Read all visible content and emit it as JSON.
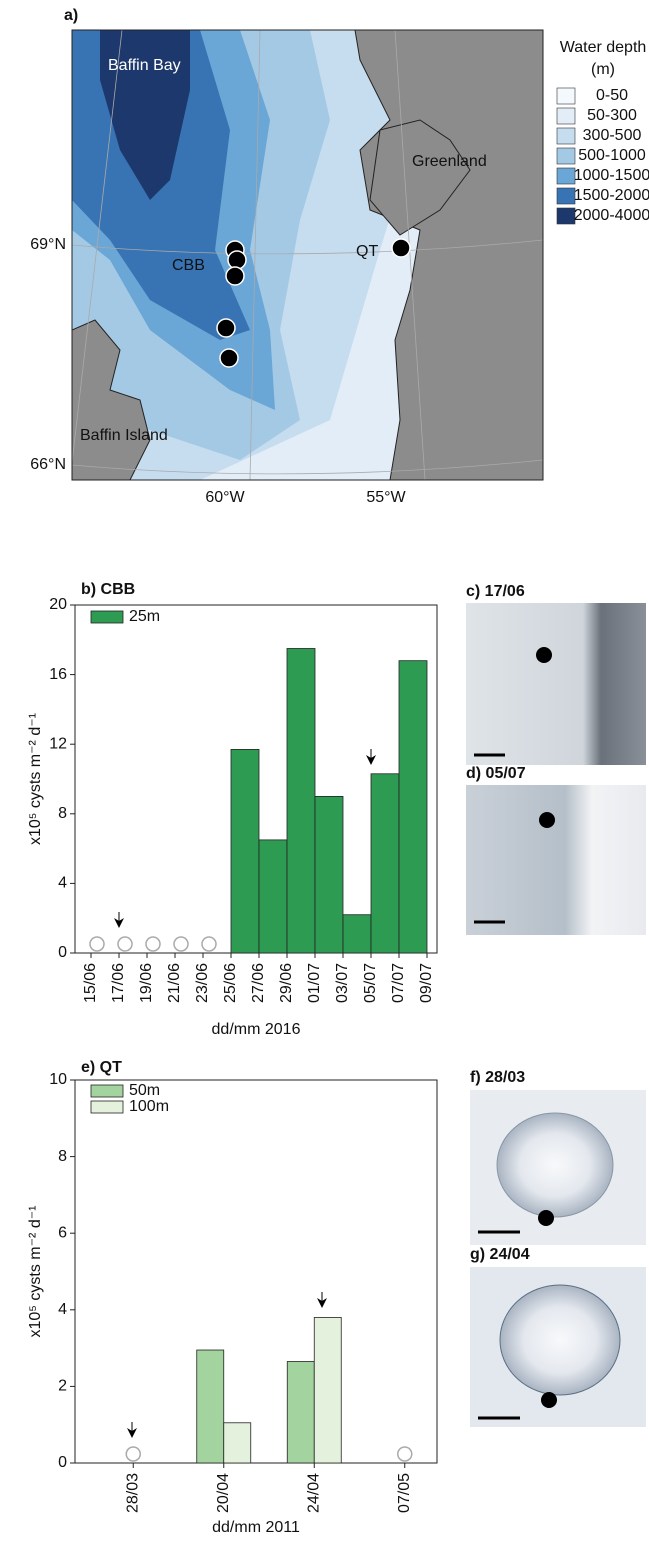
{
  "map": {
    "label": "a)",
    "places": [
      "Baffin Bay",
      "Greenland",
      "CBB",
      "QT",
      "Baffin Island"
    ],
    "lat_labels": [
      "69°N",
      "66°N"
    ],
    "lon_labels": [
      "60°W",
      "55°W"
    ],
    "legend_title": [
      "Water depth",
      "(m)"
    ],
    "legend": [
      {
        "name": "0-50",
        "color": "#f4f9fd"
      },
      {
        "name": "50-300",
        "color": "#e2edf8"
      },
      {
        "name": "300-500",
        "color": "#c6dcef"
      },
      {
        "name": "500-1000",
        "color": "#a4c9e5"
      },
      {
        "name": "1000-1500",
        "color": "#6aa6d6"
      },
      {
        "name": "1500-2000",
        "color": "#3874b4"
      },
      {
        "name": "2000-4000",
        "color": "#1d386c"
      }
    ]
  },
  "images": [
    "c) 17/06",
    "d) 05/07",
    "f) 28/03",
    "g) 24/04"
  ],
  "chart_data": [
    {
      "type": "histogram",
      "title": "b) CBB",
      "x_label": "dd/mm 2016",
      "y_label": "x10⁵ cysts m⁻² d⁻¹",
      "bins": [
        "15/06",
        "17/06",
        "19/06",
        "21/06",
        "23/06",
        "25/06",
        "27/06",
        "29/06",
        "01/07",
        "03/07",
        "05/07",
        "07/07",
        "09/07"
      ],
      "series": [
        {
          "name": "25m",
          "color": "#2e9b53",
          "values": [
            null,
            null,
            null,
            null,
            null,
            11.7,
            6.5,
            17.5,
            9.0,
            2.2,
            10.3,
            16.8
          ]
        }
      ],
      "ylim": [
        0,
        20
      ],
      "yticks": [
        0,
        4,
        8,
        12,
        16,
        20
      ]
    },
    {
      "type": "bar",
      "title": "e) QT",
      "x_label": "dd/mm 2011",
      "y_label": "x10⁵ cysts m⁻² d⁻¹",
      "categories": [
        "28/03",
        "20/04",
        "24/04",
        "07/05"
      ],
      "series": [
        {
          "name": "50m",
          "color": "#a3d49f",
          "values": [
            null,
            2.95,
            2.65,
            null
          ]
        },
        {
          "name": "100m",
          "color": "#e3f1dd",
          "values": [
            null,
            1.05,
            3.8,
            null
          ]
        }
      ],
      "ylim": [
        0,
        10
      ],
      "yticks": [
        0,
        2,
        4,
        6,
        8,
        10
      ]
    }
  ]
}
